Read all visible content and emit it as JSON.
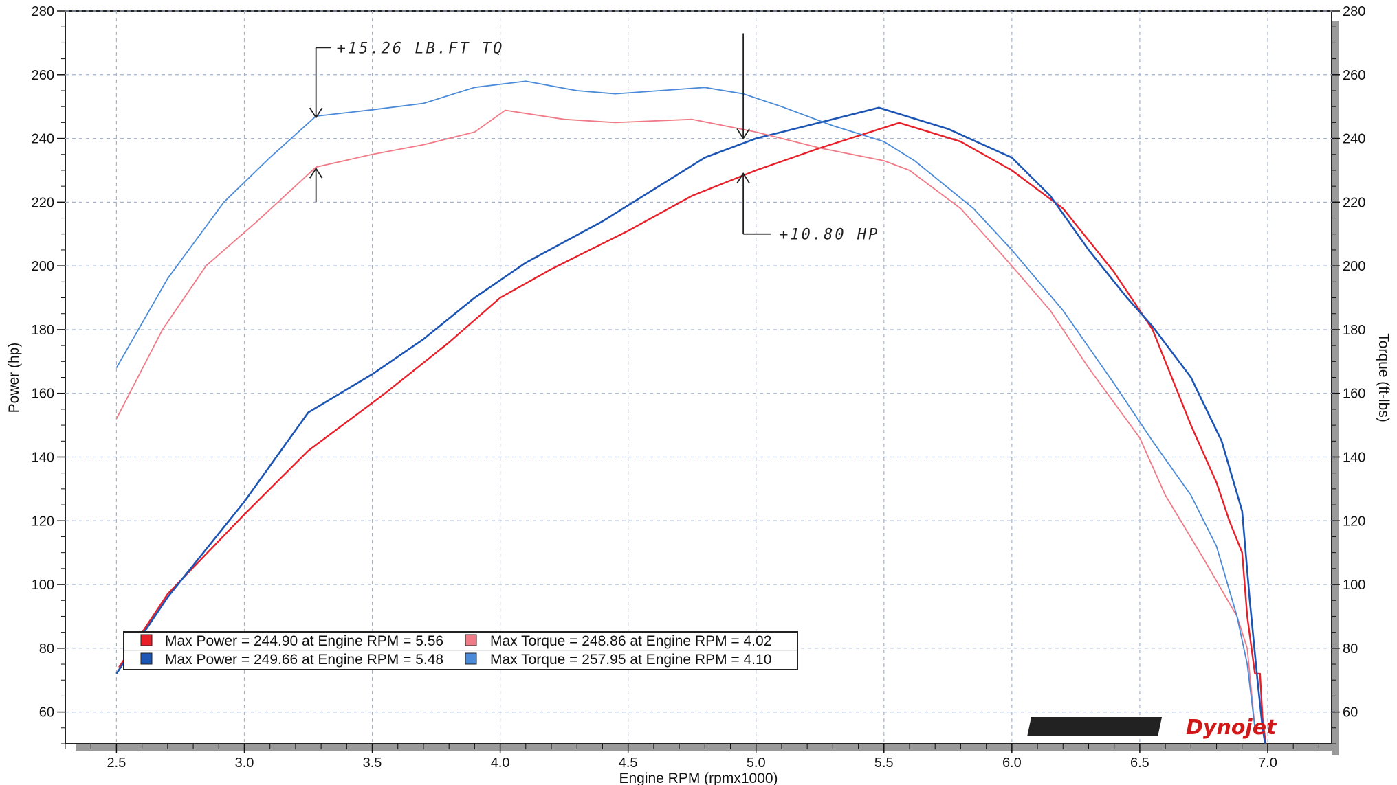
{
  "chart_data": {
    "type": "line",
    "xlabel": "Engine RPM (rpmx1000)",
    "ylabel_left": "Power (hp)",
    "ylabel_right": "Torque (ft-lbs)",
    "xlim": [
      2.3,
      7.25
    ],
    "ylim": [
      50,
      280
    ],
    "x_ticks": [
      "2.5",
      "3.0",
      "3.5",
      "4.0",
      "4.5",
      "5.0",
      "5.5",
      "6.0",
      "6.5",
      "7.0"
    ],
    "y_ticks": [
      "60",
      "80",
      "100",
      "120",
      "140",
      "160",
      "180",
      "200",
      "220",
      "240",
      "260",
      "280"
    ],
    "grid": true,
    "series": [
      {
        "name": "Max Power = 244.90 at Engine RPM = 5.56",
        "color": "#e8202a",
        "width": 2.4,
        "points": [
          [
            2.51,
            74
          ],
          [
            2.7,
            97
          ],
          [
            3.0,
            122
          ],
          [
            3.25,
            142
          ],
          [
            3.55,
            160
          ],
          [
            3.8,
            176
          ],
          [
            4.0,
            190
          ],
          [
            4.2,
            199
          ],
          [
            4.5,
            211
          ],
          [
            4.75,
            222
          ],
          [
            5.0,
            230
          ],
          [
            5.25,
            237
          ],
          [
            5.56,
            244.9
          ],
          [
            5.8,
            239
          ],
          [
            6.0,
            230
          ],
          [
            6.2,
            218
          ],
          [
            6.4,
            198
          ],
          [
            6.55,
            180
          ],
          [
            6.7,
            150
          ],
          [
            6.8,
            132
          ],
          [
            6.85,
            120
          ],
          [
            6.9,
            110
          ],
          [
            6.92,
            90
          ],
          [
            6.95,
            72
          ],
          [
            6.97,
            72
          ],
          [
            6.98,
            58
          ],
          [
            7.0,
            45
          ]
        ]
      },
      {
        "name": "Max Power = 249.66 at Engine RPM = 5.48",
        "color": "#1c55b4",
        "width": 2.6,
        "points": [
          [
            2.5,
            72
          ],
          [
            2.7,
            96
          ],
          [
            3.0,
            126
          ],
          [
            3.25,
            154
          ],
          [
            3.5,
            166
          ],
          [
            3.7,
            177
          ],
          [
            3.9,
            190
          ],
          [
            4.1,
            201
          ],
          [
            4.4,
            214
          ],
          [
            4.8,
            234
          ],
          [
            5.0,
            240
          ],
          [
            5.2,
            244
          ],
          [
            5.48,
            249.66
          ],
          [
            5.75,
            243
          ],
          [
            6.0,
            234
          ],
          [
            6.15,
            222
          ],
          [
            6.3,
            205
          ],
          [
            6.45,
            190
          ],
          [
            6.55,
            181
          ],
          [
            6.7,
            165
          ],
          [
            6.82,
            145
          ],
          [
            6.9,
            123
          ],
          [
            6.93,
            95
          ],
          [
            6.96,
            70
          ],
          [
            6.98,
            55
          ],
          [
            7.0,
            45
          ]
        ]
      },
      {
        "name": "Max Torque = 248.86 at Engine RPM = 4.02",
        "color": "#f07a86",
        "width": 1.8,
        "points": [
          [
            2.5,
            152
          ],
          [
            2.68,
            180
          ],
          [
            2.85,
            200
          ],
          [
            3.05,
            214
          ],
          [
            3.28,
            231
          ],
          [
            3.5,
            235
          ],
          [
            3.7,
            238
          ],
          [
            3.9,
            242
          ],
          [
            4.02,
            248.86
          ],
          [
            4.25,
            246
          ],
          [
            4.45,
            245
          ],
          [
            4.75,
            246
          ],
          [
            5.0,
            242
          ],
          [
            5.25,
            237
          ],
          [
            5.5,
            233
          ],
          [
            5.6,
            230
          ],
          [
            5.8,
            218
          ],
          [
            6.0,
            200
          ],
          [
            6.15,
            186
          ],
          [
            6.3,
            168
          ],
          [
            6.5,
            146
          ],
          [
            6.6,
            128
          ],
          [
            6.75,
            108
          ],
          [
            6.88,
            90
          ],
          [
            6.92,
            80
          ],
          [
            6.95,
            55
          ]
        ]
      },
      {
        "name": "Max Torque = 257.95 at Engine RPM = 4.10",
        "color": "#4a8ad8",
        "width": 1.8,
        "points": [
          [
            2.5,
            168
          ],
          [
            2.7,
            196
          ],
          [
            2.92,
            220
          ],
          [
            3.1,
            234
          ],
          [
            3.28,
            247
          ],
          [
            3.5,
            249
          ],
          [
            3.7,
            251
          ],
          [
            3.9,
            256
          ],
          [
            4.1,
            257.95
          ],
          [
            4.3,
            255
          ],
          [
            4.45,
            254
          ],
          [
            4.8,
            256
          ],
          [
            4.95,
            254
          ],
          [
            5.1,
            250
          ],
          [
            5.3,
            244
          ],
          [
            5.5,
            239
          ],
          [
            5.62,
            233
          ],
          [
            5.85,
            218
          ],
          [
            6.0,
            205
          ],
          [
            6.2,
            186
          ],
          [
            6.4,
            163
          ],
          [
            6.55,
            145
          ],
          [
            6.7,
            128
          ],
          [
            6.8,
            112
          ],
          [
            6.88,
            90
          ],
          [
            6.92,
            75
          ],
          [
            6.95,
            55
          ]
        ]
      }
    ],
    "legend": {
      "placement": "bottom-left",
      "entries": [
        {
          "text": "Max Power = 244.90 at Engine RPM = 5.56",
          "color": "#e8202a"
        },
        {
          "text": "Max Torque = 248.86 at Engine RPM = 4.02",
          "color": "#f07a86"
        },
        {
          "text": "Max Power = 249.66 at Engine RPM = 5.48",
          "color": "#1c55b4"
        },
        {
          "text": "Max Torque = 257.95 at Engine RPM = 4.10",
          "color": "#4a8ad8"
        }
      ]
    },
    "annotations": [
      {
        "text": "+15.26 LB.FT TQ",
        "x": 3.28,
        "y_from": 231,
        "y_to": 247
      },
      {
        "text": "+10.80 HP",
        "x": 4.95,
        "y_from": 229,
        "y_to": 240
      }
    ],
    "logo": "Dynojet"
  }
}
